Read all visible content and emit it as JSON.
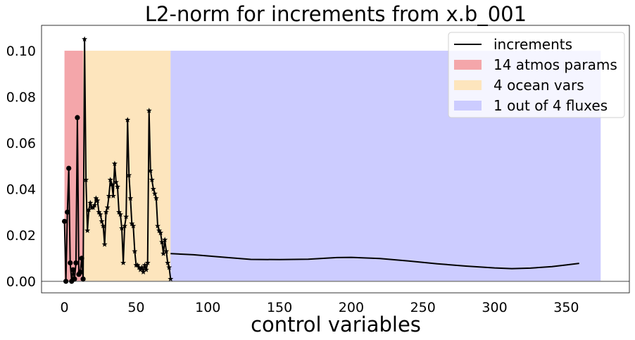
{
  "chart_data": {
    "type": "line",
    "title": "L2-norm for increments from x.b_001",
    "xlabel": "control variables",
    "ylabel": "",
    "xlim": [
      -16,
      394
    ],
    "ylim": [
      -0.005,
      0.111
    ],
    "xticks": [
      0,
      50,
      100,
      150,
      200,
      250,
      300,
      350
    ],
    "yticks": [
      0.0,
      0.02,
      0.04,
      0.06,
      0.08,
      0.1
    ],
    "xtick_labels": [
      "0",
      "50",
      "100",
      "150",
      "200",
      "250",
      "300",
      "350"
    ],
    "ytick_labels": [
      "0.00",
      "0.02",
      "0.04",
      "0.06",
      "0.08",
      "0.10"
    ],
    "grid": false,
    "legend_position": "top-right",
    "hline": 0.0,
    "regions": [
      {
        "name": "14 atmos params",
        "x0": 0,
        "x1": 13,
        "ytop": 0.1,
        "color": "#f4a6aa"
      },
      {
        "name": "4 ocean vars",
        "x0": 13,
        "x1": 74,
        "ytop": 0.1,
        "color": "#fde5bd"
      },
      {
        "name": "1 out of 4 fluxes",
        "x0": 74,
        "x1": 374,
        "ytop": 0.1,
        "color": "#ccccff"
      }
    ],
    "series": [
      {
        "name": "increments",
        "color": "#000000",
        "circle_points": [
          [
            0,
            0.026
          ],
          [
            1,
            0.0
          ],
          [
            2,
            0.03
          ],
          [
            3,
            0.049
          ],
          [
            4,
            0.008
          ],
          [
            5,
            0.0
          ],
          [
            6,
            0.005
          ],
          [
            7,
            0.001
          ],
          [
            8,
            0.008
          ],
          [
            9,
            0.071
          ],
          [
            10,
            0.003
          ],
          [
            11,
            0.004
          ],
          [
            12,
            0.01
          ],
          [
            13,
            0.001
          ]
        ],
        "star_points": [
          [
            14,
            0.105
          ],
          [
            15,
            0.044
          ],
          [
            16,
            0.022
          ],
          [
            17,
            0.031
          ],
          [
            18,
            0.034
          ],
          [
            19,
            0.032
          ],
          [
            20,
            0.032
          ],
          [
            21,
            0.033
          ],
          [
            22,
            0.036
          ],
          [
            23,
            0.035
          ],
          [
            24,
            0.03
          ],
          [
            25,
            0.029
          ],
          [
            26,
            0.026
          ],
          [
            27,
            0.024
          ],
          [
            28,
            0.016
          ],
          [
            29,
            0.03
          ],
          [
            30,
            0.032
          ],
          [
            31,
            0.037
          ],
          [
            32,
            0.044
          ],
          [
            33,
            0.042
          ],
          [
            34,
            0.037
          ],
          [
            35,
            0.051
          ],
          [
            36,
            0.043
          ],
          [
            37,
            0.041
          ],
          [
            38,
            0.03
          ],
          [
            39,
            0.029
          ],
          [
            40,
            0.023
          ],
          [
            41,
            0.008
          ],
          [
            42,
            0.024
          ],
          [
            43,
            0.028
          ],
          [
            44,
            0.07
          ],
          [
            45,
            0.046
          ],
          [
            46,
            0.036
          ],
          [
            47,
            0.025
          ],
          [
            48,
            0.024
          ],
          [
            49,
            0.013
          ],
          [
            50,
            0.007
          ],
          [
            51,
            0.007
          ],
          [
            52,
            0.006
          ],
          [
            53,
            0.005
          ],
          [
            54,
            0.006
          ],
          [
            55,
            0.004
          ],
          [
            56,
            0.007
          ],
          [
            57,
            0.005
          ],
          [
            58,
            0.008
          ],
          [
            59,
            0.074
          ],
          [
            60,
            0.048
          ],
          [
            61,
            0.044
          ],
          [
            62,
            0.04
          ],
          [
            63,
            0.038
          ],
          [
            64,
            0.036
          ],
          [
            65,
            0.024
          ],
          [
            66,
            0.022
          ],
          [
            67,
            0.021
          ],
          [
            68,
            0.017
          ],
          [
            69,
            0.012
          ],
          [
            70,
            0.018
          ],
          [
            71,
            0.013
          ],
          [
            72,
            0.008
          ],
          [
            73,
            0.006
          ],
          [
            74,
            0.001
          ]
        ],
        "line_points": [
          [
            74,
            0.012
          ],
          [
            90,
            0.0115
          ],
          [
            110,
            0.0105
          ],
          [
            130,
            0.0095
          ],
          [
            150,
            0.0094
          ],
          [
            170,
            0.0096
          ],
          [
            190,
            0.0103
          ],
          [
            200,
            0.0104
          ],
          [
            220,
            0.0099
          ],
          [
            240,
            0.0088
          ],
          [
            260,
            0.0076
          ],
          [
            280,
            0.0066
          ],
          [
            300,
            0.0058
          ],
          [
            312,
            0.0055
          ],
          [
            325,
            0.0057
          ],
          [
            340,
            0.0064
          ],
          [
            350,
            0.0071
          ],
          [
            359,
            0.0078
          ]
        ]
      }
    ]
  }
}
